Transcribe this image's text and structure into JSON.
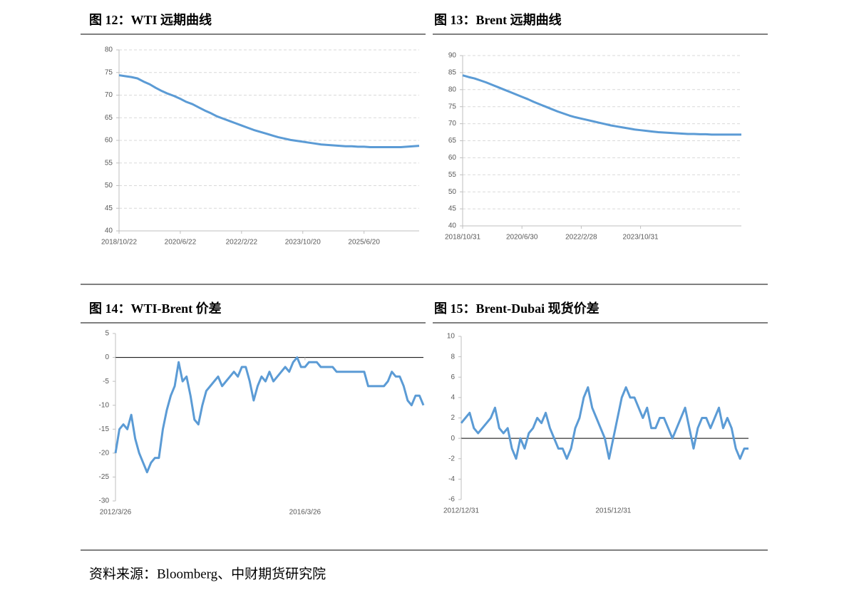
{
  "chart_data": [
    {
      "type": "line",
      "title": "图 12：WTI 远期曲线",
      "color": "#5b9bd5",
      "grid": true,
      "ylim": [
        40,
        80
      ],
      "yticks": [
        40,
        45,
        50,
        55,
        60,
        65,
        70,
        75,
        80
      ],
      "categories": [
        "2018/10/22",
        null,
        null,
        null,
        null,
        null,
        null,
        null,
        null,
        null,
        "2020/6/22",
        null,
        null,
        null,
        null,
        null,
        null,
        null,
        null,
        null,
        "2022/2/22",
        null,
        null,
        null,
        null,
        null,
        null,
        null,
        null,
        null,
        "2023/10/20",
        null,
        null,
        null,
        null,
        null,
        null,
        null,
        null,
        null,
        "2025/6/20",
        null,
        null,
        null,
        null,
        null,
        null,
        null,
        null,
        null
      ],
      "values": [
        74.4,
        74.2,
        74.0,
        73.7,
        73.0,
        72.4,
        71.6,
        70.9,
        70.3,
        69.8,
        69.2,
        68.5,
        68.0,
        67.3,
        66.6,
        66.0,
        65.3,
        64.8,
        64.3,
        63.8,
        63.3,
        62.8,
        62.3,
        61.9,
        61.5,
        61.1,
        60.7,
        60.4,
        60.1,
        59.9,
        59.7,
        59.5,
        59.3,
        59.1,
        59.0,
        58.9,
        58.8,
        58.7,
        58.7,
        58.6,
        58.6,
        58.5,
        58.5,
        58.5,
        58.5,
        58.5,
        58.5,
        58.6,
        58.7,
        58.8
      ]
    },
    {
      "type": "line",
      "title": "图 13：Brent 远期曲线",
      "color": "#5b9bd5",
      "grid": true,
      "ylim": [
        40,
        90
      ],
      "yticks": [
        40,
        45,
        50,
        55,
        60,
        65,
        70,
        75,
        80,
        85,
        90
      ],
      "categories": [
        "2018/10/31",
        null,
        null,
        null,
        null,
        null,
        null,
        null,
        null,
        null,
        "2020/6/30",
        null,
        null,
        null,
        null,
        null,
        null,
        null,
        null,
        null,
        "2022/2/28",
        null,
        null,
        null,
        null,
        null,
        null,
        null,
        null,
        null,
        "2023/10/31",
        null,
        null,
        null,
        null,
        null,
        null,
        null,
        null,
        null,
        null,
        null,
        null,
        null,
        null,
        null,
        null,
        null
      ],
      "values": [
        84.2,
        83.7,
        83.3,
        82.7,
        82.1,
        81.4,
        80.7,
        80.0,
        79.3,
        78.6,
        77.9,
        77.2,
        76.4,
        75.7,
        75.0,
        74.3,
        73.6,
        73.0,
        72.4,
        71.9,
        71.5,
        71.1,
        70.7,
        70.3,
        69.9,
        69.5,
        69.2,
        68.9,
        68.6,
        68.3,
        68.1,
        67.9,
        67.7,
        67.5,
        67.4,
        67.3,
        67.2,
        67.1,
        67.0,
        67.0,
        66.9,
        66.9,
        66.8,
        66.8,
        66.8,
        66.8,
        66.8,
        66.8
      ]
    },
    {
      "type": "line",
      "title": "图 14：WTI-Brent 价差",
      "color": "#5b9bd5",
      "grid": false,
      "ylim": [
        -30,
        5
      ],
      "yticks": [
        -30,
        -25,
        -20,
        -15,
        -10,
        -5,
        0,
        5
      ],
      "categories": [
        "2012/3/26",
        null,
        null,
        null,
        null,
        null,
        null,
        null,
        null,
        null,
        null,
        null,
        null,
        null,
        null,
        null,
        null,
        null,
        null,
        null,
        null,
        null,
        null,
        null,
        null,
        null,
        null,
        null,
        null,
        null,
        null,
        null,
        null,
        null,
        null,
        null,
        null,
        null,
        null,
        null,
        null,
        null,
        null,
        null,
        null,
        null,
        null,
        null,
        "2016/3/26",
        null,
        null,
        null,
        null,
        null,
        null,
        null,
        null,
        null,
        null,
        null,
        null,
        null,
        null,
        null,
        null,
        null,
        null,
        null,
        null,
        null,
        null,
        null,
        null,
        null,
        null,
        null,
        null,
        null,
        null
      ],
      "values": [
        -20,
        -15,
        -14,
        -15,
        -12,
        -17,
        -20,
        -22,
        -24,
        -22,
        -21,
        -21,
        -15,
        -11,
        -8,
        -6,
        -1,
        -5,
        -4,
        -8,
        -13,
        -14,
        -10,
        -7,
        -6,
        -5,
        -4,
        -6,
        -5,
        -4,
        -3,
        -4,
        -2,
        -2,
        -5,
        -9,
        -6,
        -4,
        -5,
        -3,
        -5,
        -4,
        -3,
        -2,
        -3,
        -1,
        0,
        -2,
        -2,
        -1,
        -1,
        -1,
        -2,
        -2,
        -2,
        -2,
        -3,
        -3,
        -3,
        -3,
        -3,
        -3,
        -3,
        -3,
        -6,
        -6,
        -6,
        -6,
        -6,
        -5,
        -3,
        -4,
        -4,
        -6,
        -9,
        -10,
        -8,
        -8,
        -10
      ]
    },
    {
      "type": "line",
      "title": "图 15：Brent-Dubai 现货价差",
      "color": "#5b9bd5",
      "grid": false,
      "ylim": [
        -6,
        10
      ],
      "yticks": [
        -6,
        -4,
        -2,
        0,
        2,
        4,
        6,
        8,
        10
      ],
      "categories": [
        "2012/12/31",
        null,
        null,
        null,
        null,
        null,
        null,
        null,
        null,
        null,
        null,
        null,
        null,
        null,
        null,
        null,
        null,
        null,
        null,
        null,
        null,
        null,
        null,
        null,
        null,
        null,
        null,
        null,
        null,
        null,
        null,
        null,
        null,
        null,
        null,
        null,
        "2015/12/31",
        null,
        null,
        null,
        null,
        null,
        null,
        null,
        null,
        null,
        null,
        null,
        null,
        null,
        null,
        null,
        null,
        null,
        null,
        null,
        null,
        null,
        null,
        null,
        null,
        null,
        null,
        null,
        null,
        null,
        null,
        null,
        null
      ],
      "values": [
        1.5,
        2,
        2.5,
        1,
        0.5,
        1,
        1.5,
        2,
        3,
        1,
        0.5,
        1,
        -1,
        -2,
        0,
        -1,
        0.5,
        1,
        2,
        1.5,
        2.5,
        1,
        0,
        -1,
        -1,
        -2,
        -1,
        1,
        2,
        4,
        5,
        3,
        2,
        1,
        0,
        -2,
        0,
        2,
        4,
        5,
        4,
        4,
        3,
        2,
        3,
        1,
        1,
        2,
        2,
        1,
        0,
        1,
        2,
        3,
        1,
        -1,
        1,
        2,
        2,
        1,
        2,
        3,
        1,
        2,
        1,
        -1,
        -2,
        -1,
        -1
      ]
    }
  ],
  "source": "资料来源：Bloomberg、中财期货研究院"
}
